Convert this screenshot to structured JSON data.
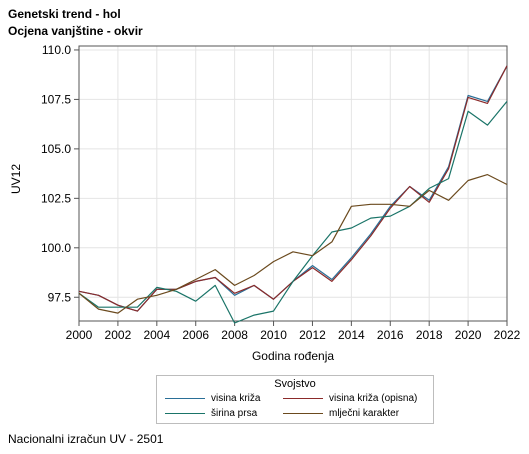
{
  "title_line1": "Genetski trend - hol",
  "title_line2": "Ocjena vanjštine - okvir",
  "footnote": "Nacionalni izračun UV - 2501",
  "chart_data": {
    "type": "line",
    "xlabel": "Godina rođenja",
    "ylabel": "UV12",
    "xlim": [
      2000,
      2022
    ],
    "ylim": [
      96.3,
      110.2
    ],
    "x_ticks": [
      2000,
      2002,
      2004,
      2006,
      2008,
      2010,
      2012,
      2014,
      2016,
      2018,
      2020,
      2022
    ],
    "y_ticks": [
      97.5,
      100.0,
      102.5,
      105.0,
      107.5,
      110.0
    ],
    "y_tick_labels": [
      "97.5",
      "100.0",
      "102.5",
      "105.0",
      "107.5",
      "110.0"
    ],
    "grid": true,
    "legend_position": "bottom",
    "x": [
      2000,
      2001,
      2002,
      2003,
      2004,
      2005,
      2006,
      2007,
      2008,
      2009,
      2010,
      2011,
      2012,
      2013,
      2014,
      2015,
      2016,
      2017,
      2018,
      2019,
      2020,
      2021,
      2022
    ],
    "series": [
      {
        "name": "visina križa",
        "color": "#2a6f97",
        "values": [
          97.8,
          97.6,
          97.1,
          96.8,
          97.9,
          97.9,
          98.3,
          98.5,
          97.6,
          98.1,
          97.4,
          98.3,
          99.1,
          98.4,
          99.5,
          100.7,
          102.1,
          103.1,
          102.4,
          104.1,
          107.7,
          107.4,
          109.2
        ]
      },
      {
        "name": "visina križa (opisna)",
        "color": "#8b2a2a",
        "values": [
          97.8,
          97.6,
          97.1,
          96.8,
          97.9,
          97.9,
          98.3,
          98.5,
          97.7,
          98.1,
          97.4,
          98.3,
          99.0,
          98.3,
          99.4,
          100.6,
          102.0,
          103.1,
          102.3,
          104.0,
          107.6,
          107.3,
          109.2
        ]
      },
      {
        "name": "širina prsa",
        "color": "#1a7468",
        "values": [
          97.7,
          97.0,
          97.0,
          97.0,
          98.0,
          97.8,
          97.3,
          98.1,
          96.2,
          96.6,
          96.8,
          98.3,
          99.6,
          100.8,
          101.0,
          101.5,
          101.6,
          102.1,
          103.0,
          103.5,
          106.9,
          106.2,
          107.4
        ]
      },
      {
        "name": "mlječni karakter",
        "color": "#6b4a1e",
        "values": [
          97.7,
          96.9,
          96.7,
          97.4,
          97.6,
          97.9,
          98.4,
          98.9,
          98.1,
          98.6,
          99.3,
          99.8,
          99.6,
          100.3,
          102.1,
          102.2,
          102.2,
          102.1,
          102.9,
          102.4,
          103.4,
          103.7,
          103.2
        ]
      }
    ]
  },
  "legend": {
    "title": "Svojstvo",
    "items": [
      {
        "label": "visina križa",
        "color": "#2a6f97"
      },
      {
        "label": "visina križa (opisna)",
        "color": "#8b2a2a"
      },
      {
        "label": "širina prsa",
        "color": "#1a7468"
      },
      {
        "label": "mlječni karakter",
        "color": "#6b4a1e"
      }
    ]
  }
}
